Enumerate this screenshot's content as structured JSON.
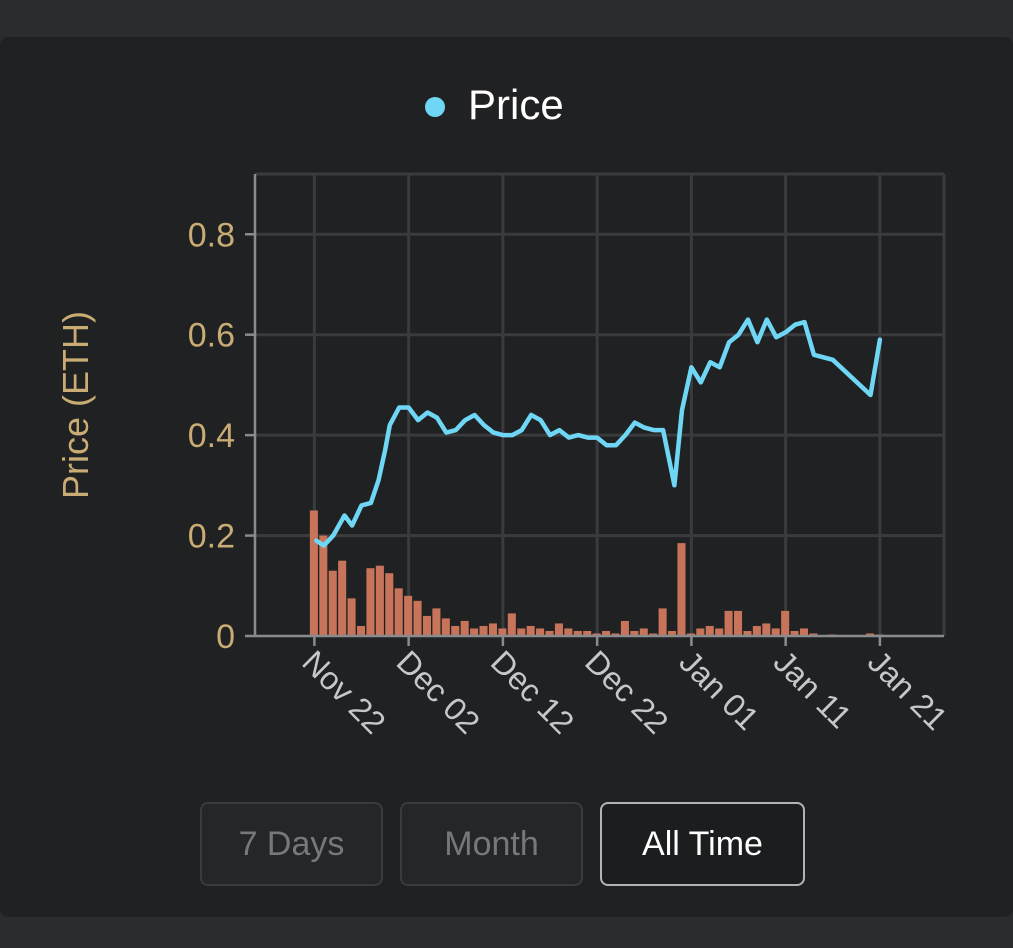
{
  "chart_data": {
    "type": "bar+line",
    "legend": {
      "label": "Price",
      "color": "#6fd7f5",
      "placement": "top-center"
    },
    "ylabel": "Price (ETH)",
    "ylim": [
      0,
      0.92
    ],
    "yticks": [
      0,
      0.2,
      0.4,
      0.6,
      0.8
    ],
    "ytick_labels": [
      "0",
      "0.2",
      "0.4",
      "0.6",
      "0.8"
    ],
    "xlim": [
      -6.3,
      66.8
    ],
    "xticks": [
      0,
      10,
      20,
      30,
      40,
      50,
      60
    ],
    "xtick_labels": [
      "Nov 22",
      "Dec 02",
      "Dec 12",
      "Dec 22",
      "Jan 01",
      "Jan 11",
      "Jan 21"
    ],
    "grid": true,
    "line_color": "#6fd7f5",
    "bar_color": "#c8745a",
    "price_series": [
      [
        0.2,
        0.19
      ],
      [
        1.0,
        0.18
      ],
      [
        2.0,
        0.2
      ],
      [
        3.2,
        0.24
      ],
      [
        4.0,
        0.22
      ],
      [
        5.0,
        0.26
      ],
      [
        6.0,
        0.265
      ],
      [
        6.8,
        0.31
      ],
      [
        7.5,
        0.37
      ],
      [
        8.0,
        0.42
      ],
      [
        9.0,
        0.455
      ],
      [
        10.0,
        0.455
      ],
      [
        11.0,
        0.43
      ],
      [
        12.0,
        0.445
      ],
      [
        13.0,
        0.435
      ],
      [
        14.0,
        0.405
      ],
      [
        15.0,
        0.41
      ],
      [
        16.0,
        0.43
      ],
      [
        17.0,
        0.44
      ],
      [
        18.0,
        0.42
      ],
      [
        19.0,
        0.405
      ],
      [
        20.0,
        0.4
      ],
      [
        21.0,
        0.4
      ],
      [
        22.0,
        0.41
      ],
      [
        23.0,
        0.44
      ],
      [
        24.0,
        0.43
      ],
      [
        25.0,
        0.4
      ],
      [
        26.0,
        0.41
      ],
      [
        27.0,
        0.395
      ],
      [
        28.0,
        0.4
      ],
      [
        29.0,
        0.395
      ],
      [
        30.0,
        0.395
      ],
      [
        31.0,
        0.38
      ],
      [
        32.0,
        0.38
      ],
      [
        33.0,
        0.4
      ],
      [
        34.0,
        0.425
      ],
      [
        35.0,
        0.415
      ],
      [
        36.0,
        0.41
      ],
      [
        37.0,
        0.41
      ],
      [
        38.2,
        0.3
      ],
      [
        39.0,
        0.45
      ],
      [
        40.0,
        0.535
      ],
      [
        41.0,
        0.505
      ],
      [
        42.0,
        0.545
      ],
      [
        43.0,
        0.535
      ],
      [
        44.0,
        0.585
      ],
      [
        45.0,
        0.6
      ],
      [
        46.0,
        0.63
      ],
      [
        47.0,
        0.585
      ],
      [
        48.0,
        0.63
      ],
      [
        49.0,
        0.595
      ],
      [
        50.0,
        0.605
      ],
      [
        51.0,
        0.62
      ],
      [
        52.0,
        0.625
      ],
      [
        53.0,
        0.56
      ],
      [
        54.0,
        0.555
      ],
      [
        55.0,
        0.55
      ],
      [
        59.0,
        0.48
      ],
      [
        60.0,
        0.59
      ]
    ],
    "volume_bars": [
      [
        0,
        0.25
      ],
      [
        1,
        0.2
      ],
      [
        2,
        0.13
      ],
      [
        3,
        0.15
      ],
      [
        4,
        0.075
      ],
      [
        5,
        0.02
      ],
      [
        6,
        0.135
      ],
      [
        7,
        0.14
      ],
      [
        8,
        0.125
      ],
      [
        9,
        0.095
      ],
      [
        10,
        0.08
      ],
      [
        11,
        0.07
      ],
      [
        12,
        0.04
      ],
      [
        13,
        0.055
      ],
      [
        14,
        0.035
      ],
      [
        15,
        0.02
      ],
      [
        16,
        0.03
      ],
      [
        17,
        0.015
      ],
      [
        18,
        0.02
      ],
      [
        19,
        0.025
      ],
      [
        20,
        0.015
      ],
      [
        21,
        0.045
      ],
      [
        22,
        0.015
      ],
      [
        23,
        0.02
      ],
      [
        24,
        0.015
      ],
      [
        25,
        0.01
      ],
      [
        26,
        0.025
      ],
      [
        27,
        0.015
      ],
      [
        28,
        0.01
      ],
      [
        29,
        0.01
      ],
      [
        30,
        0.005
      ],
      [
        31,
        0.01
      ],
      [
        32,
        0.005
      ],
      [
        33,
        0.03
      ],
      [
        34,
        0.01
      ],
      [
        35,
        0.015
      ],
      [
        36,
        0.005
      ],
      [
        37,
        0.055
      ],
      [
        38,
        0.01
      ],
      [
        39,
        0.185
      ],
      [
        40,
        0.005
      ],
      [
        41,
        0.015
      ],
      [
        42,
        0.02
      ],
      [
        43,
        0.015
      ],
      [
        44,
        0.05
      ],
      [
        45,
        0.05
      ],
      [
        46,
        0.01
      ],
      [
        47,
        0.02
      ],
      [
        48,
        0.025
      ],
      [
        49,
        0.015
      ],
      [
        50,
        0.05
      ],
      [
        51,
        0.01
      ],
      [
        52,
        0.015
      ],
      [
        53,
        0.005
      ],
      [
        55,
        0.003
      ],
      [
        59,
        0.005
      ],
      [
        60,
        0.003
      ]
    ]
  },
  "time_range": {
    "buttons": [
      {
        "label": "7 Days",
        "active": false
      },
      {
        "label": "Month",
        "active": false
      },
      {
        "label": "All Time",
        "active": true
      }
    ]
  }
}
